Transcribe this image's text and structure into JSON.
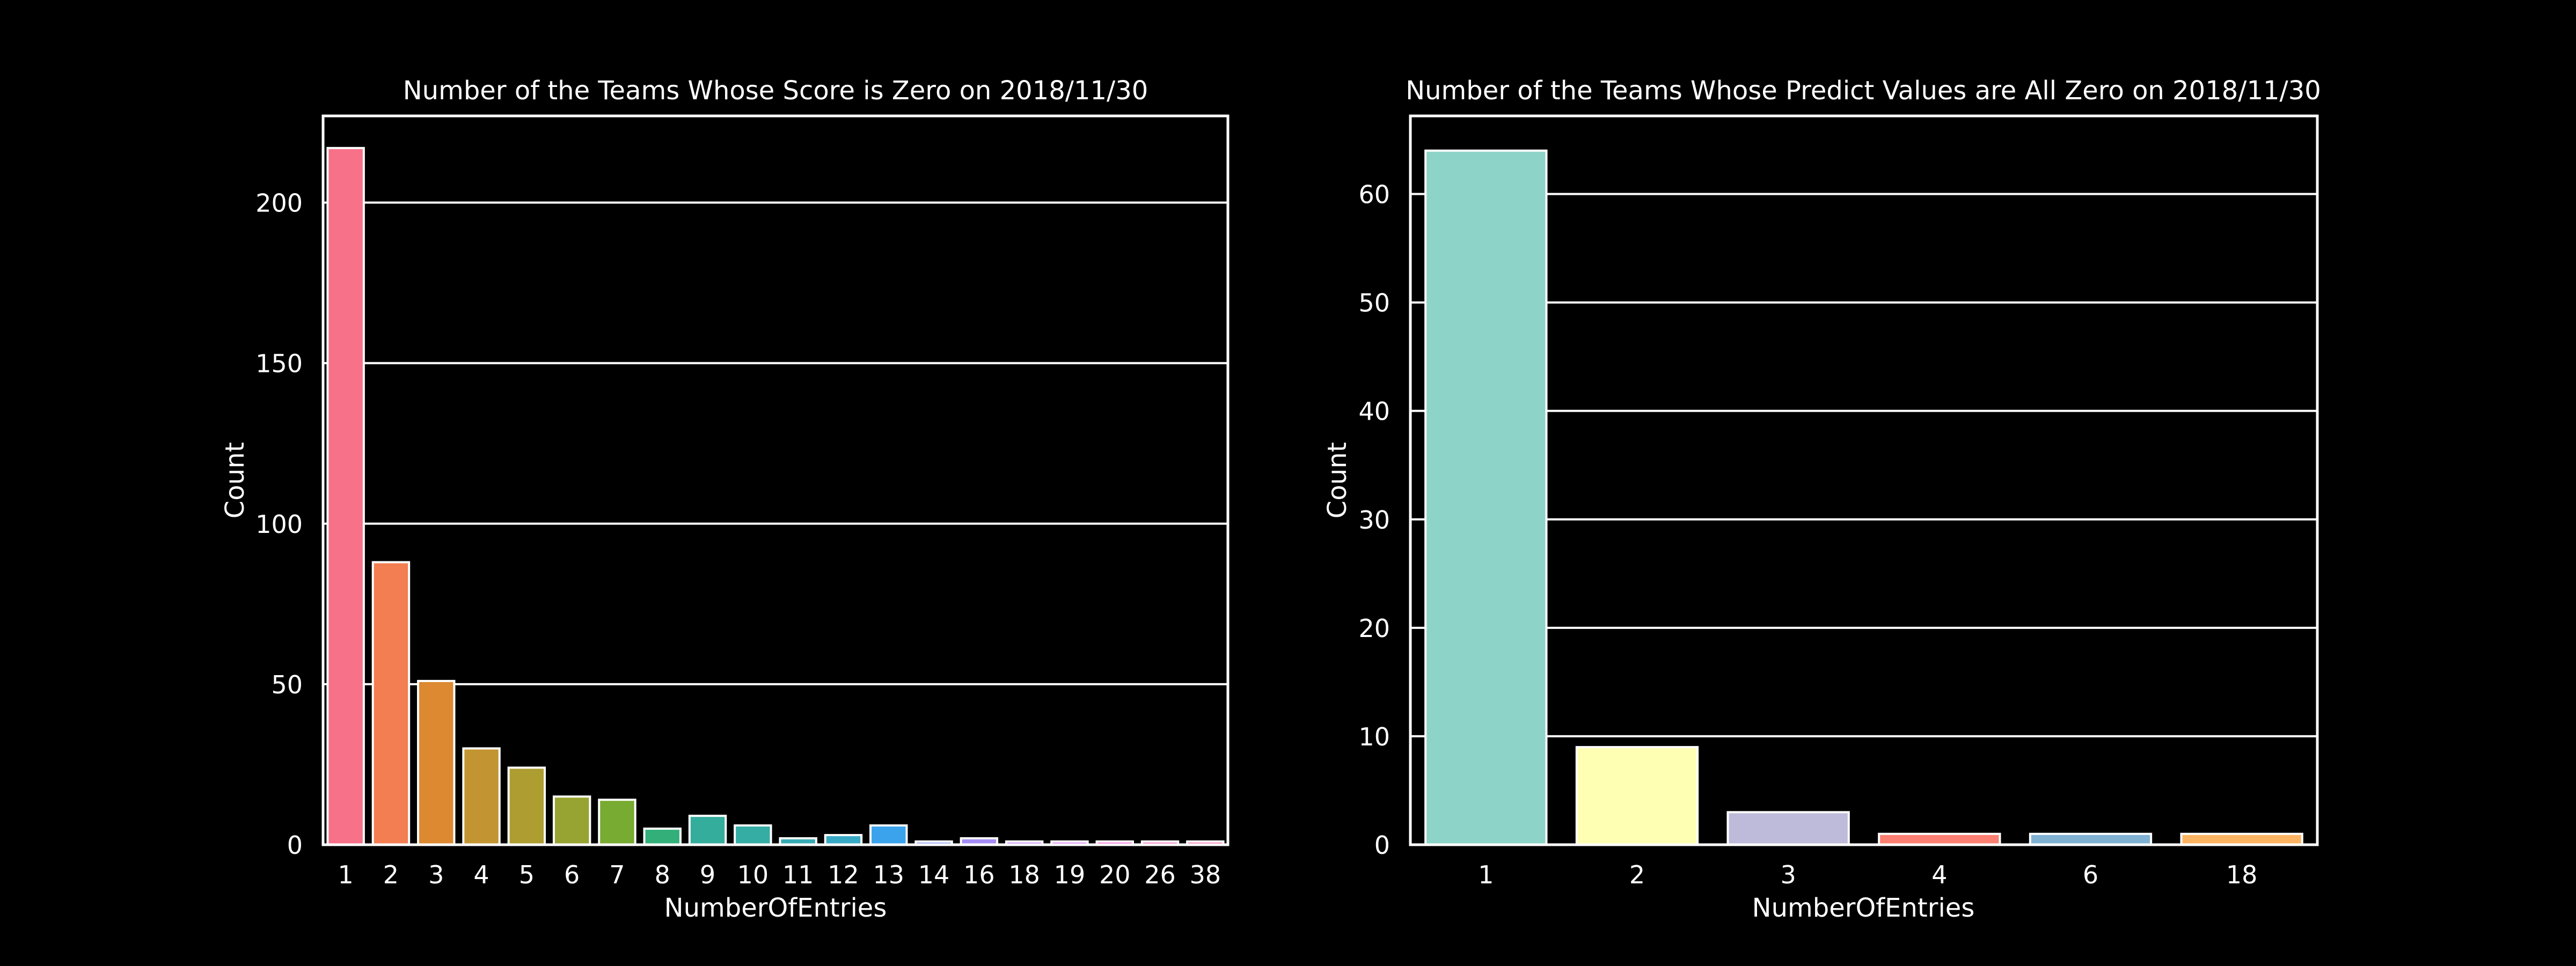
{
  "figure": {
    "background": "#000000",
    "foreground": "#ffffff"
  },
  "chart_data": [
    {
      "type": "bar",
      "title": "Number of the Teams Whose Score is Zero on 2018/11/30",
      "xlabel": "NumberOfEntries",
      "ylabel": "Count",
      "ylim": [
        0,
        227
      ],
      "yticks": [
        0,
        50,
        100,
        150,
        200
      ],
      "grid": "horizontal",
      "categories": [
        "1",
        "2",
        "3",
        "4",
        "5",
        "6",
        "7",
        "8",
        "9",
        "10",
        "11",
        "12",
        "13",
        "14",
        "16",
        "18",
        "19",
        "20",
        "26",
        "38"
      ],
      "values": [
        217,
        88,
        51,
        30,
        24,
        15,
        14,
        5,
        9,
        6,
        2,
        3,
        6,
        1,
        2,
        1,
        1,
        1,
        1,
        1
      ],
      "colors": [
        "#f77189",
        "#f37e52",
        "#dc8932",
        "#c39532",
        "#ae9d31",
        "#97a431",
        "#77ab31",
        "#33b07a",
        "#35ad9c",
        "#36ada4",
        "#37abb4",
        "#38a9c5",
        "#3ba3ec",
        "#8197f4",
        "#a48cf4",
        "#c17ff4",
        "#d673f4",
        "#f35fd4",
        "#f665bf",
        "#f66bad"
      ]
    },
    {
      "type": "bar",
      "title": "Number of the Teams Whose Predict Values are All Zero on 2018/11/30",
      "xlabel": "NumberOfEntries",
      "ylabel": "Count",
      "ylim": [
        0,
        67.2
      ],
      "yticks": [
        0,
        10,
        20,
        30,
        40,
        50,
        60
      ],
      "grid": "horizontal",
      "categories": [
        "1",
        "2",
        "3",
        "4",
        "6",
        "18"
      ],
      "values": [
        64,
        9,
        3,
        1,
        1,
        1
      ],
      "colors": [
        "#8dd3c7",
        "#ffffb3",
        "#bebada",
        "#fb8072",
        "#80b1d3",
        "#fdb462"
      ]
    }
  ]
}
